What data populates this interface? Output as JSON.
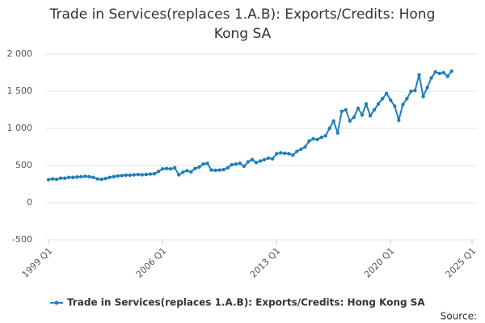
{
  "chart_data": {
    "type": "line",
    "title_lines": [
      "Trade in Services(replaces 1.A.B): Exports/Credits: Hong",
      "Kong SA"
    ],
    "categories": [
      "1999 Q1",
      null,
      null,
      null,
      null,
      null,
      null,
      null,
      null,
      null,
      null,
      null,
      null,
      null,
      null,
      null,
      null,
      null,
      null,
      null,
      null,
      null,
      null,
      null,
      null,
      null,
      null,
      null,
      "2006 Q1",
      null,
      null,
      null,
      null,
      null,
      null,
      null,
      null,
      null,
      null,
      null,
      null,
      null,
      null,
      null,
      null,
      null,
      null,
      null,
      null,
      null,
      null,
      null,
      null,
      null,
      null,
      null,
      "2013 Q1",
      null,
      null,
      null,
      null,
      null,
      null,
      null,
      null,
      null,
      null,
      null,
      null,
      null,
      null,
      null,
      null,
      null,
      null,
      null,
      null,
      null,
      null,
      null,
      null,
      null,
      null,
      null,
      "2020 Q1",
      null,
      null,
      null,
      null,
      null,
      null,
      null,
      null,
      null,
      null,
      null,
      null,
      null,
      null,
      null,
      null,
      null,
      null,
      null,
      "2025 Q1"
    ],
    "series": [
      {
        "name": "Trade in Services(replaces 1.A.B): Exports/Credits: Hong Kong SA",
        "color": "#1f7fb8",
        "values": [
          310,
          320,
          315,
          330,
          330,
          340,
          340,
          345,
          350,
          355,
          350,
          340,
          320,
          315,
          325,
          340,
          350,
          360,
          365,
          370,
          370,
          375,
          380,
          375,
          380,
          385,
          390,
          420,
          455,
          460,
          455,
          470,
          375,
          410,
          430,
          415,
          460,
          480,
          520,
          530,
          440,
          435,
          440,
          445,
          470,
          510,
          520,
          530,
          490,
          550,
          580,
          540,
          560,
          580,
          600,
          590,
          660,
          670,
          665,
          660,
          640,
          690,
          720,
          750,
          830,
          860,
          850,
          880,
          900,
          1000,
          1100,
          940,
          1230,
          1250,
          1100,
          1150,
          1270,
          1180,
          1330,
          1170,
          1250,
          1330,
          1400,
          1470,
          1380,
          1300,
          1110,
          1320,
          1400,
          1500,
          1510,
          1720,
          1430,
          1550,
          1680,
          1760,
          1740,
          1750,
          1700,
          1770,
          null,
          null,
          null,
          null,
          null
        ]
      }
    ],
    "ylim": [
      -500,
      2000
    ],
    "yticks": [
      {
        "value": 2000,
        "label": "2 000"
      },
      {
        "value": 1500,
        "label": "1 500"
      },
      {
        "value": 1000,
        "label": "1 000"
      },
      500,
      0,
      -500
    ],
    "grid": true,
    "legend": "bottom",
    "source": "Source:"
  }
}
